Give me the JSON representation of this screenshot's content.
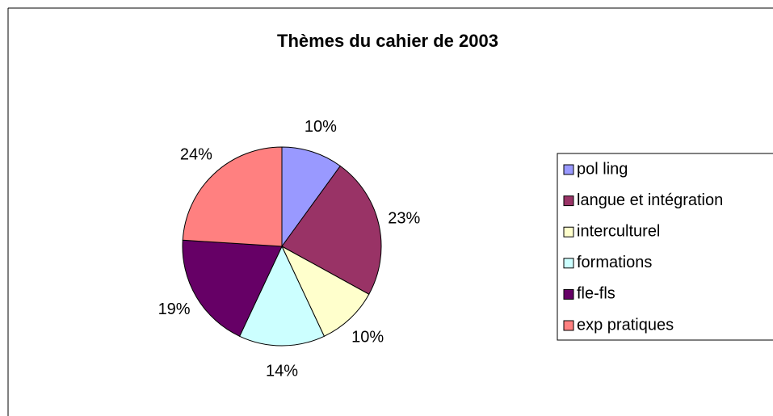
{
  "chart_data": {
    "type": "pie",
    "title": "Thèmes du cahier de 2003",
    "categories": [
      "pol ling",
      "langue et intégration",
      "interculturel",
      "formations",
      "fle-fls",
      "exp pratiques"
    ],
    "values": [
      10,
      23,
      10,
      14,
      19,
      24
    ],
    "value_labels": [
      "10%",
      "23%",
      "10%",
      "14%",
      "19%",
      "24%"
    ],
    "colors": [
      "#9999ff",
      "#993366",
      "#ffffcc",
      "#ccffff",
      "#660066",
      "#ff8080"
    ],
    "legend": "right"
  }
}
